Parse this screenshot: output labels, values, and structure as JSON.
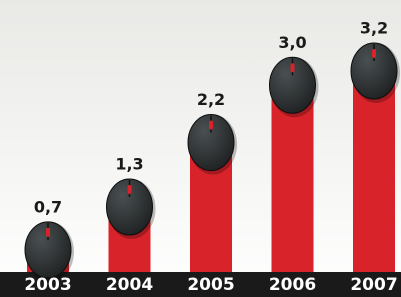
{
  "chart_data": {
    "type": "bar",
    "categories": [
      "2003",
      "2004",
      "2005",
      "2006",
      "2007"
    ],
    "values": [
      0.7,
      1.3,
      2.2,
      3.0,
      3.2
    ],
    "value_labels": [
      "0,7",
      "1,3",
      "2,2",
      "3,0",
      "3,2"
    ],
    "color": "#d8232a",
    "ylim": [
      0,
      3.8
    ]
  }
}
